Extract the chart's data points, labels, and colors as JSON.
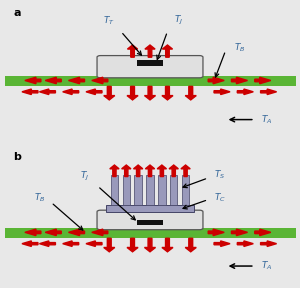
{
  "bg_color": "#e8e8e8",
  "panel_bg": "#f8f8f8",
  "border_color": "#aaaaaa",
  "green_color": "#5ab535",
  "red_color": "#cc0000",
  "dark_red": "#990000",
  "pkg_fill": "#e0e0e0",
  "pkg_edge": "#555555",
  "die_color": "#111111",
  "hs_fill": "#9999bb",
  "hs_edge": "#444466",
  "label_color": "#336699",
  "black": "#000000",
  "panel_a": "a",
  "panel_b": "b"
}
